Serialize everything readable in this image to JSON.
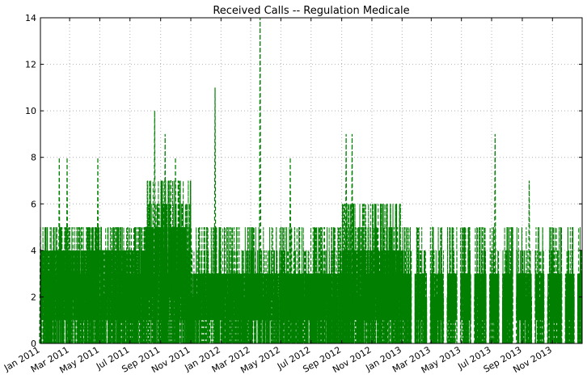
{
  "chart_data": {
    "type": "line",
    "title": "Received Calls -- Regulation Medicale",
    "xlabel": "",
    "ylabel": "",
    "ylim": [
      0,
      14
    ],
    "xlim": [
      "2011-01-01",
      "2013-12-31"
    ],
    "y_ticks": [
      "0",
      "2",
      "4",
      "6",
      "8",
      "10",
      "12",
      "14"
    ],
    "x_ticks": [
      {
        "date": "2011-01-01",
        "label": "Jan 2011"
      },
      {
        "date": "2011-03-01",
        "label": "Mar 2011"
      },
      {
        "date": "2011-05-01",
        "label": "May 2011"
      },
      {
        "date": "2011-07-01",
        "label": "Jul 2011"
      },
      {
        "date": "2011-09-01",
        "label": "Sep 2011"
      },
      {
        "date": "2011-11-01",
        "label": "Nov 2011"
      },
      {
        "date": "2012-01-01",
        "label": "Jan 2012"
      },
      {
        "date": "2012-03-01",
        "label": "Mar 2012"
      },
      {
        "date": "2012-05-01",
        "label": "May 2012"
      },
      {
        "date": "2012-07-01",
        "label": "Jul 2012"
      },
      {
        "date": "2012-09-01",
        "label": "Sep 2012"
      },
      {
        "date": "2012-11-01",
        "label": "Nov 2012"
      },
      {
        "date": "2013-01-01",
        "label": "Jan 2013"
      },
      {
        "date": "2013-03-01",
        "label": "Mar 2013"
      },
      {
        "date": "2013-05-01",
        "label": "May 2013"
      },
      {
        "date": "2013-07-01",
        "label": "Jul 2013"
      },
      {
        "date": "2013-09-01",
        "label": "Sep 2013"
      },
      {
        "date": "2013-11-01",
        "label": "Nov 2013"
      }
    ],
    "grid": true,
    "series_style": {
      "color": "#007f00",
      "line": "dashed"
    },
    "peaks": [
      {
        "x": "2011-01-01",
        "y": 5
      },
      {
        "x": "2011-02-08",
        "y": 8
      },
      {
        "x": "2011-02-24",
        "y": 8
      },
      {
        "x": "2011-04-27",
        "y": 8
      },
      {
        "x": "2011-08-20",
        "y": 10
      },
      {
        "x": "2011-09-10",
        "y": 9
      },
      {
        "x": "2011-10-01",
        "y": 8
      },
      {
        "x": "2011-12-20",
        "y": 11
      },
      {
        "x": "2012-03-20",
        "y": 14
      },
      {
        "x": "2012-05-20",
        "y": 8
      },
      {
        "x": "2012-09-10",
        "y": 9
      },
      {
        "x": "2012-09-22",
        "y": 9
      },
      {
        "x": "2013-07-08",
        "y": 9
      },
      {
        "x": "2013-09-15",
        "y": 7
      }
    ],
    "segments": [
      {
        "start": "2011-01-01",
        "end": "2011-07-31",
        "base": 2,
        "typical": 4,
        "high": 5
      },
      {
        "start": "2011-08-01",
        "end": "2011-10-31",
        "base": 3,
        "typical": 5,
        "high": 7
      },
      {
        "start": "2011-11-01",
        "end": "2012-08-31",
        "base": 2,
        "typical": 3,
        "high": 5
      },
      {
        "start": "2012-09-01",
        "end": "2012-12-31",
        "base": 2,
        "typical": 4,
        "high": 6
      },
      {
        "start": "2013-01-01",
        "end": "2013-12-31",
        "base": 2,
        "typical": 3,
        "high": 5
      }
    ],
    "gaps": [
      {
        "start": "2013-01-20",
        "end": "2013-01-26"
      },
      {
        "start": "2013-02-20",
        "end": "2013-02-26"
      },
      {
        "start": "2013-03-26",
        "end": "2013-04-01"
      },
      {
        "start": "2013-04-22",
        "end": "2013-04-28"
      },
      {
        "start": "2013-05-20",
        "end": "2013-05-26"
      },
      {
        "start": "2013-06-20",
        "end": "2013-06-26"
      },
      {
        "start": "2013-07-16",
        "end": "2013-07-22"
      },
      {
        "start": "2013-08-13",
        "end": "2013-08-19"
      },
      {
        "start": "2013-09-20",
        "end": "2013-09-26"
      },
      {
        "start": "2013-10-15",
        "end": "2013-10-21"
      },
      {
        "start": "2013-11-20",
        "end": "2013-11-26"
      },
      {
        "start": "2013-12-15",
        "end": "2013-12-21"
      }
    ]
  }
}
